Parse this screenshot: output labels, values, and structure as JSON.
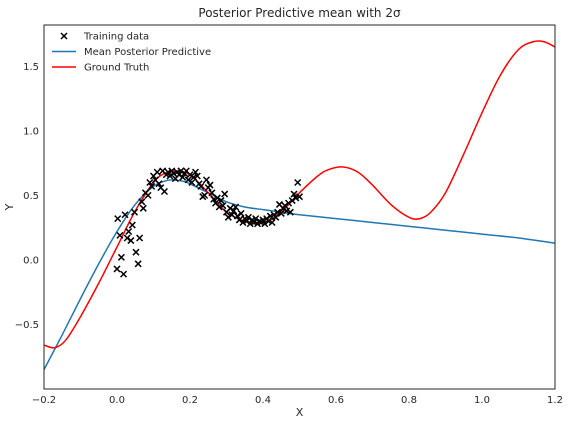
{
  "chart_data": {
    "type": "line",
    "title": "Posterior Predictive mean with 2σ",
    "xlabel": "X",
    "ylabel": "Y",
    "xlim": [
      -0.2,
      1.2
    ],
    "ylim": [
      -1.0,
      1.82
    ],
    "xticks": [
      -0.2,
      0.0,
      0.2,
      0.4,
      0.6,
      0.8,
      1.0,
      1.2
    ],
    "xtick_labels": [
      "−0.2",
      "0.0",
      "0.2",
      "0.4",
      "0.6",
      "0.8",
      "1.0",
      "1.2"
    ],
    "yticks": [
      -0.5,
      0.0,
      0.5,
      1.0,
      1.5
    ],
    "ytick_labels": [
      "−0.5",
      "0.0",
      "0.5",
      "1.0",
      "1.5"
    ],
    "grid": false,
    "legend_position": "top-left",
    "series": [
      {
        "name": "Training data",
        "kind": "scatter",
        "marker": "x",
        "color": "#000000",
        "points": [
          [
            0.0,
            -0.07
          ],
          [
            0.002,
            0.32
          ],
          [
            0.008,
            0.19
          ],
          [
            0.012,
            0.02
          ],
          [
            0.018,
            -0.11
          ],
          [
            0.022,
            0.35
          ],
          [
            0.028,
            0.17
          ],
          [
            0.032,
            0.22
          ],
          [
            0.038,
            0.15
          ],
          [
            0.042,
            0.27
          ],
          [
            0.048,
            0.37
          ],
          [
            0.052,
            0.06
          ],
          [
            0.058,
            -0.03
          ],
          [
            0.062,
            0.17
          ],
          [
            0.068,
            0.45
          ],
          [
            0.072,
            0.4
          ],
          [
            0.078,
            0.52
          ],
          [
            0.085,
            0.5
          ],
          [
            0.09,
            0.6
          ],
          [
            0.095,
            0.57
          ],
          [
            0.1,
            0.65
          ],
          [
            0.105,
            0.62
          ],
          [
            0.11,
            0.68
          ],
          [
            0.115,
            0.59
          ],
          [
            0.12,
            0.56
          ],
          [
            0.125,
            0.69
          ],
          [
            0.13,
            0.53
          ],
          [
            0.135,
            0.66
          ],
          [
            0.14,
            0.68
          ],
          [
            0.145,
            0.65
          ],
          [
            0.15,
            0.69
          ],
          [
            0.155,
            0.67
          ],
          [
            0.16,
            0.63
          ],
          [
            0.165,
            0.68
          ],
          [
            0.17,
            0.66
          ],
          [
            0.175,
            0.69
          ],
          [
            0.18,
            0.64
          ],
          [
            0.185,
            0.67
          ],
          [
            0.19,
            0.69
          ],
          [
            0.195,
            0.62
          ],
          [
            0.2,
            0.66
          ],
          [
            0.205,
            0.6
          ],
          [
            0.21,
            0.64
          ],
          [
            0.215,
            0.68
          ],
          [
            0.22,
            0.65
          ],
          [
            0.225,
            0.59
          ],
          [
            0.23,
            0.57
          ],
          [
            0.235,
            0.49
          ],
          [
            0.24,
            0.5
          ],
          [
            0.245,
            0.62
          ],
          [
            0.25,
            0.56
          ],
          [
            0.255,
            0.58
          ],
          [
            0.26,
            0.52
          ],
          [
            0.265,
            0.47
          ],
          [
            0.27,
            0.44
          ],
          [
            0.275,
            0.48
          ],
          [
            0.28,
            0.41
          ],
          [
            0.285,
            0.46
          ],
          [
            0.29,
            0.42
          ],
          [
            0.295,
            0.51
          ],
          [
            0.3,
            0.37
          ],
          [
            0.305,
            0.33
          ],
          [
            0.31,
            0.4
          ],
          [
            0.315,
            0.35
          ],
          [
            0.32,
            0.38
          ],
          [
            0.325,
            0.41
          ],
          [
            0.33,
            0.34
          ],
          [
            0.335,
            0.31
          ],
          [
            0.34,
            0.36
          ],
          [
            0.345,
            0.29
          ],
          [
            0.35,
            0.32
          ],
          [
            0.355,
            0.3
          ],
          [
            0.36,
            0.33
          ],
          [
            0.365,
            0.28
          ],
          [
            0.37,
            0.31
          ],
          [
            0.375,
            0.29
          ],
          [
            0.38,
            0.32
          ],
          [
            0.385,
            0.28
          ],
          [
            0.39,
            0.3
          ],
          [
            0.395,
            0.29
          ],
          [
            0.4,
            0.31
          ],
          [
            0.405,
            0.28
          ],
          [
            0.41,
            0.32
          ],
          [
            0.415,
            0.3
          ],
          [
            0.42,
            0.34
          ],
          [
            0.425,
            0.29
          ],
          [
            0.43,
            0.35
          ],
          [
            0.435,
            0.33
          ],
          [
            0.44,
            0.37
          ],
          [
            0.445,
            0.43
          ],
          [
            0.45,
            0.36
          ],
          [
            0.455,
            0.4
          ],
          [
            0.46,
            0.42
          ],
          [
            0.465,
            0.38
          ],
          [
            0.47,
            0.44
          ],
          [
            0.475,
            0.37
          ],
          [
            0.48,
            0.46
          ],
          [
            0.485,
            0.51
          ],
          [
            0.49,
            0.48
          ],
          [
            0.495,
            0.6
          ],
          [
            0.5,
            0.49
          ]
        ]
      },
      {
        "name": "Mean Posterior Predictive",
        "kind": "line",
        "color": "#1f77b4",
        "x": [
          -0.2,
          -0.15,
          -0.1,
          -0.05,
          0.0,
          0.05,
          0.1,
          0.13,
          0.15,
          0.18,
          0.2,
          0.25,
          0.3,
          0.35,
          0.4,
          0.45,
          0.5,
          0.6,
          0.7,
          0.8,
          0.9,
          1.0,
          1.1,
          1.2
        ],
        "y": [
          -0.85,
          -0.58,
          -0.3,
          -0.03,
          0.22,
          0.43,
          0.57,
          0.61,
          0.62,
          0.61,
          0.59,
          0.52,
          0.45,
          0.41,
          0.39,
          0.37,
          0.35,
          0.32,
          0.29,
          0.26,
          0.23,
          0.2,
          0.17,
          0.13
        ]
      },
      {
        "name": "Ground Truth",
        "kind": "line",
        "color": "#ff0000",
        "x": [
          -0.2,
          -0.17,
          -0.14,
          -0.1,
          -0.05,
          0.0,
          0.05,
          0.1,
          0.13,
          0.16,
          0.2,
          0.25,
          0.3,
          0.35,
          0.38,
          0.42,
          0.46,
          0.5,
          0.55,
          0.58,
          0.62,
          0.66,
          0.7,
          0.75,
          0.8,
          0.83,
          0.86,
          0.9,
          0.95,
          1.0,
          1.05,
          1.1,
          1.14,
          1.17,
          1.2
        ],
        "y": [
          -0.66,
          -0.68,
          -0.62,
          -0.44,
          -0.18,
          0.1,
          0.38,
          0.6,
          0.67,
          0.69,
          0.66,
          0.52,
          0.37,
          0.3,
          0.28,
          0.31,
          0.4,
          0.52,
          0.65,
          0.7,
          0.72,
          0.68,
          0.58,
          0.43,
          0.33,
          0.32,
          0.37,
          0.52,
          0.82,
          1.14,
          1.43,
          1.63,
          1.69,
          1.69,
          1.65
        ]
      }
    ]
  }
}
